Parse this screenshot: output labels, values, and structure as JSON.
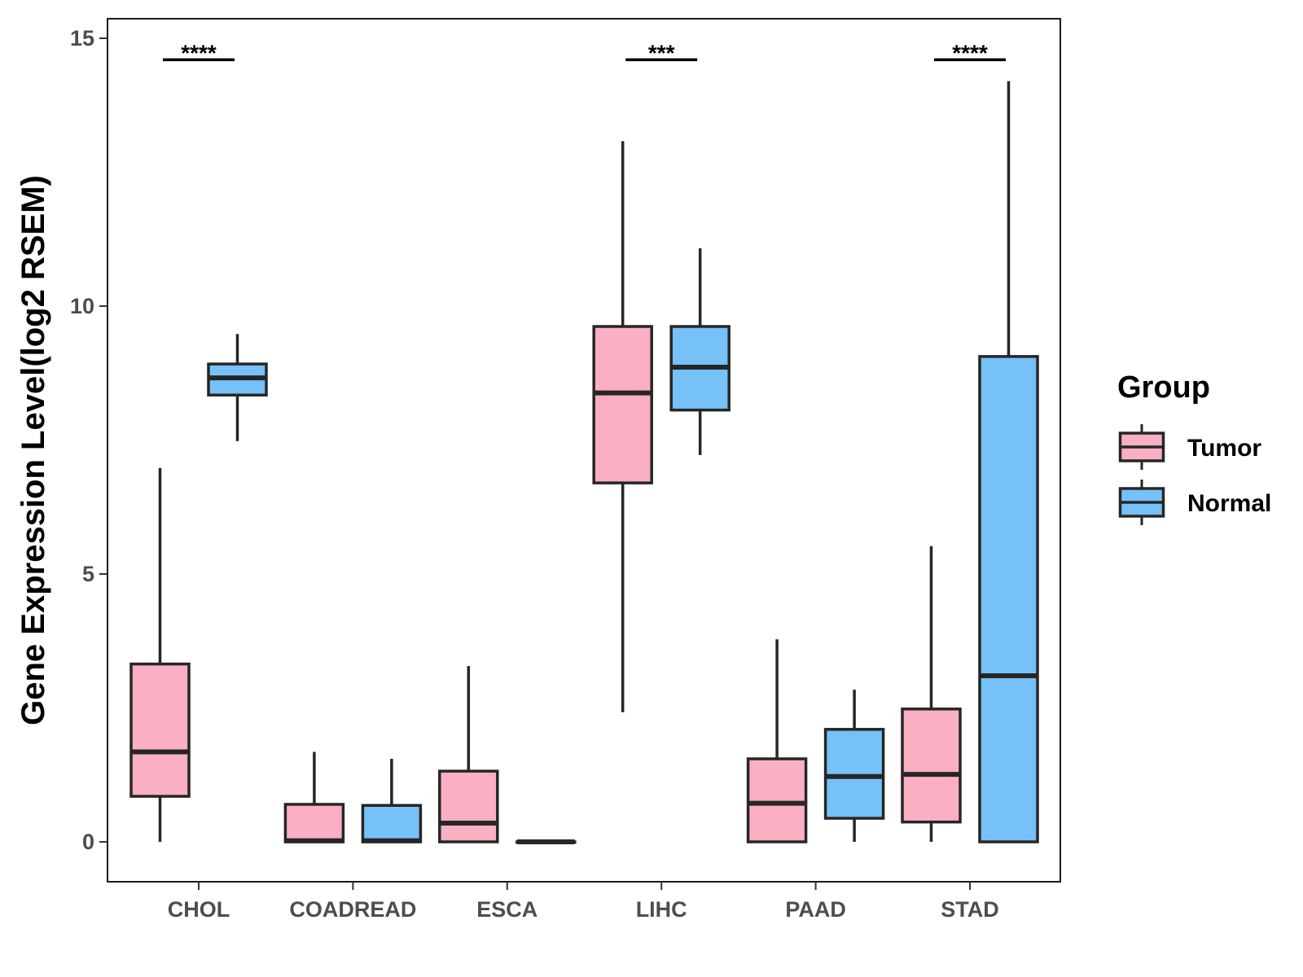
{
  "chart_data": {
    "type": "boxplot",
    "title": "",
    "xlabel": "",
    "ylabel": "Gene Expression Level(log2 RSEM)",
    "ylim": [
      -0.7,
      15.35
    ],
    "yticks": [
      0,
      5,
      10,
      15
    ],
    "yticklabels": [
      "0",
      "5",
      "10",
      "15"
    ],
    "grid": false,
    "legend": {
      "title": "Group",
      "position": "right"
    },
    "categories": [
      "CHOL",
      "COADREAD",
      "ESCA",
      "LIHC",
      "PAAD",
      "STAD"
    ],
    "series": [
      {
        "name": "Tumor",
        "color": "#FBAFC2",
        "boxes": [
          {
            "whisker_low": 0,
            "q1": 0.85,
            "median": 1.68,
            "q3": 3.32,
            "whisker_high": 6.98
          },
          {
            "whisker_low": 0,
            "q1": 0,
            "median": 0.02,
            "q3": 0.7,
            "whisker_high": 1.68
          },
          {
            "whisker_low": 0,
            "q1": 0,
            "median": 0.35,
            "q3": 1.32,
            "whisker_high": 3.28
          },
          {
            "whisker_low": 2.42,
            "q1": 6.7,
            "median": 8.38,
            "q3": 9.62,
            "whisker_high": 13.08
          },
          {
            "whisker_low": 0,
            "q1": 0,
            "median": 0.72,
            "q3": 1.55,
            "whisker_high": 3.78
          },
          {
            "whisker_low": 0,
            "q1": 0.37,
            "median": 1.26,
            "q3": 2.48,
            "whisker_high": 5.52
          }
        ]
      },
      {
        "name": "Normal",
        "color": "#76C1F8",
        "boxes": [
          {
            "whisker_low": 7.48,
            "q1": 8.34,
            "median": 8.66,
            "q3": 8.92,
            "whisker_high": 9.48
          },
          {
            "whisker_low": 0,
            "q1": 0,
            "median": 0.02,
            "q3": 0.68,
            "whisker_high": 1.55
          },
          {
            "whisker_low": 0,
            "q1": 0,
            "median": 0,
            "q3": 0,
            "whisker_high": 0
          },
          {
            "whisker_low": 7.22,
            "q1": 8.06,
            "median": 8.86,
            "q3": 9.62,
            "whisker_high": 11.08
          },
          {
            "whisker_low": 0,
            "q1": 0.44,
            "median": 1.22,
            "q3": 2.1,
            "whisker_high": 2.84
          },
          {
            "whisker_low": 0,
            "q1": 0,
            "median": 3.1,
            "q3": 9.06,
            "whisker_high": 14.2
          }
        ]
      }
    ],
    "annotations": [
      {
        "category": "CHOL",
        "label": "****"
      },
      {
        "category": "LIHC",
        "label": "***"
      },
      {
        "category": "STAD",
        "label": "****"
      }
    ]
  }
}
